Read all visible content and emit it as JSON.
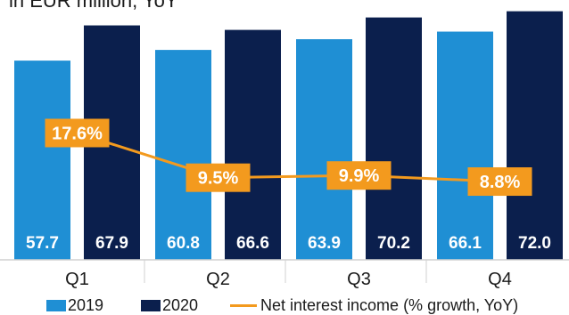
{
  "subtitle": "in EUR million, YoY",
  "colors": {
    "series_2019": "#1f8fd4",
    "series_2020": "#0b1f4d",
    "growth_line": "#f39a1e",
    "axis": "#d0d0d0"
  },
  "legend": {
    "s2019": "2019",
    "s2020": "2020",
    "growth": "Net interest income (% growth, YoY)"
  },
  "chart_data": {
    "type": "bar",
    "categories": [
      "Q1",
      "Q2",
      "Q3",
      "Q4"
    ],
    "series": [
      {
        "name": "2019",
        "values": [
          57.7,
          60.8,
          63.9,
          66.1
        ],
        "labels": [
          "57.7",
          "60.8",
          "63.9",
          "66.1"
        ]
      },
      {
        "name": "2020",
        "values": [
          67.9,
          66.6,
          70.2,
          72.0
        ],
        "labels": [
          "67.9",
          "66.6",
          "70.2",
          "72.0"
        ]
      }
    ],
    "line_series": {
      "name": "Net interest income (% growth, YoY)",
      "values": [
        17.6,
        9.5,
        9.9,
        8.8
      ],
      "labels": [
        "17.6%",
        "9.5%",
        "9.9%",
        "8.8%"
      ]
    },
    "title": "",
    "subtitle": "in EUR million, YoY",
    "xlabel": "",
    "ylabel": "",
    "grid": false,
    "legend_position": "bottom"
  }
}
